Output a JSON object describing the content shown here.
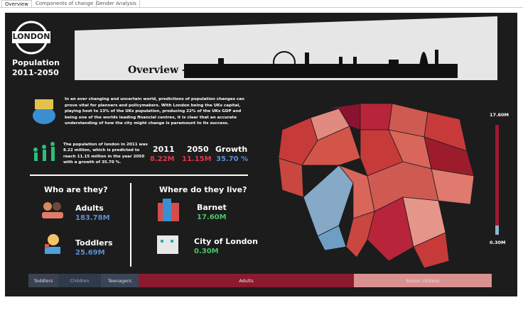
{
  "tabs": [
    "Overview",
    "Components of change",
    "Gender Analysis"
  ],
  "header": {
    "logo": "LONDON",
    "title_line1": "Population",
    "title_line2": "2011-2050",
    "banner": "Overview -"
  },
  "intro": "In an ever changing and uncertain world, predictions of population changes can prove vital for planners and policymakers. With London being the UKs capital, playing host to 13% of the UKs population, producing 22% of the UKs GDP and being one of the worlds leading financial centres, it is clear that an accurate understanding of how the city might change is paramount to its success.",
  "summary": "The population of london in 2011 was 8.22 million, which is predicted to reach 11.15 million in the year 2050 with a growth of 35.70 %.",
  "stats": [
    {
      "label": "2011",
      "value": "8.22M"
    },
    {
      "label": "2050",
      "value": "11.15M"
    },
    {
      "label": "Growth",
      "value": "35.70 %"
    }
  ],
  "who": {
    "title": "Who are they?",
    "items": [
      {
        "label": "Adults",
        "value": "183.78M"
      },
      {
        "label": "Toddlers",
        "value": "25.69M"
      }
    ]
  },
  "where": {
    "title": "Where do they live?",
    "items": [
      {
        "label": "Barnet",
        "value": "17.60M"
      },
      {
        "label": "City of London",
        "value": "0.30M"
      }
    ]
  },
  "legend": {
    "max": "17.60M",
    "min": "0.30M"
  },
  "age_groups": [
    "Toddlers",
    "Children",
    "Teenagers",
    "Adults",
    "Senior citizens"
  ]
}
